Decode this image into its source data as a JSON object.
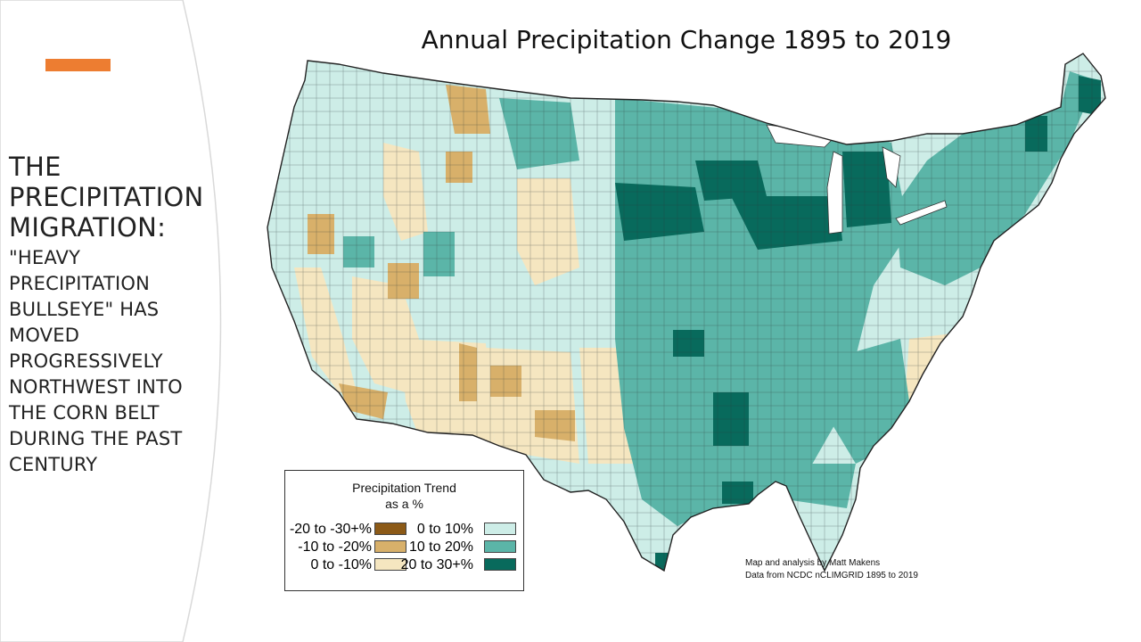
{
  "slide": {
    "accent_color": "#ED7D31",
    "heading": "THE PRECIPITATION MIGRATION:",
    "heading_lines": [
      "THE",
      "PRECIPITATION",
      "MIGRATION:"
    ],
    "subheading": "\"HEAVY PRECIPITATION BULLSEYE\" HAS MOVED PROGRESSIVELY NORTHWEST INTO THE CORN BELT DURING THE PAST CENTURY",
    "subheading_lines": [
      "\"HEAVY",
      "PRECIPITATION",
      "BULLSEYE\" HAS",
      "MOVED",
      "PROGRESSIVELY",
      "NORTHWEST INTO",
      "THE CORN BELT",
      "DURING THE PAST",
      "CENTURY"
    ]
  },
  "map": {
    "title": "Annual Precipitation Change 1895 to 2019",
    "legend": {
      "title_line1": "Precipitation Trend",
      "title_line2": "as a %",
      "classes": [
        {
          "label": "-20 to -30+%",
          "color": "#8C5A17"
        },
        {
          "label": "-10 to -20%",
          "color": "#D8B06A"
        },
        {
          "label": "0 to -10%",
          "color": "#F5E6C0"
        },
        {
          "label": "0 to 10%",
          "color": "#CDEDE7"
        },
        {
          "label": "10 to 20%",
          "color": "#5BB5A8"
        },
        {
          "label": "20 to 30+%",
          "color": "#086A5C"
        }
      ]
    },
    "credit_line1": "Map and analysis by Matt Makens",
    "credit_line2": "Data from NCDC nCLIMGRID 1895 to 2019"
  }
}
